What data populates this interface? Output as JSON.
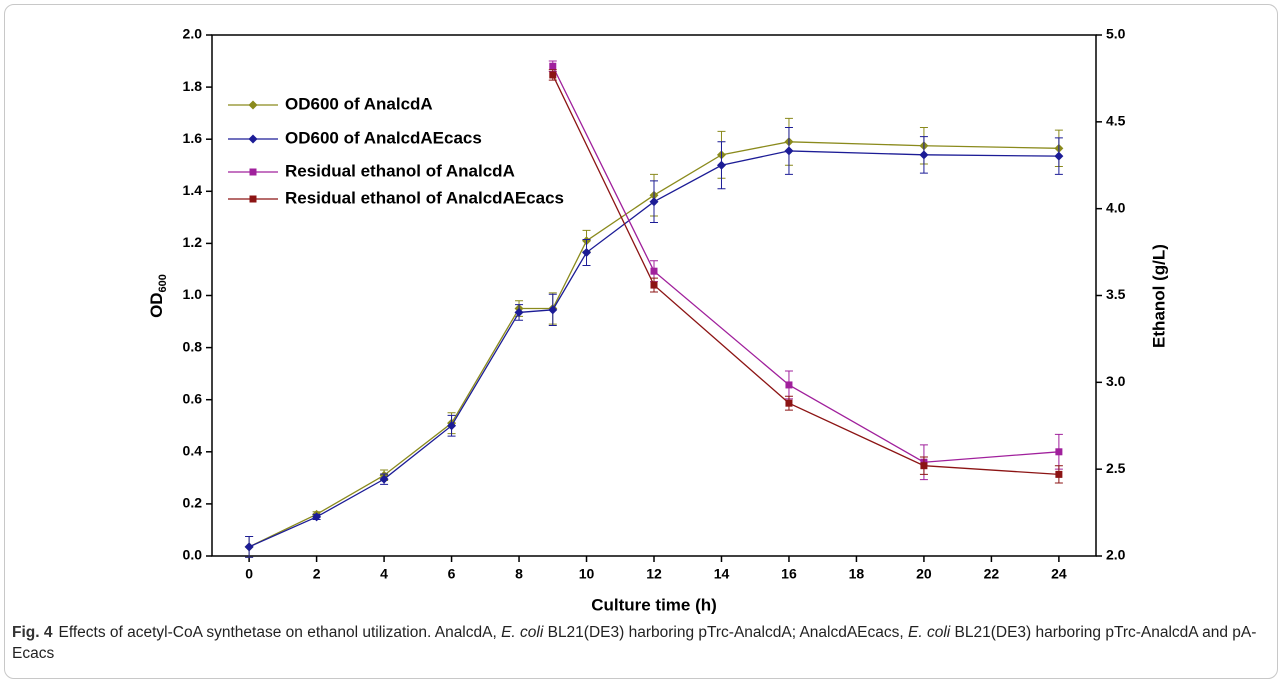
{
  "chart_data": {
    "type": "line",
    "xlabel": "Culture time (h)",
    "ylabel": "OD",
    "ylabel_subscript": "600",
    "y2label": "Ethanol (g/L)",
    "xlim": [
      -1.1,
      25.1
    ],
    "xticks": [
      0,
      2,
      4,
      6,
      8,
      10,
      12,
      14,
      16,
      18,
      20,
      22,
      24
    ],
    "ylim": [
      0,
      2
    ],
    "yticks": [
      {
        "value": 0,
        "label": "0.0"
      },
      0.2,
      0.4,
      0.6,
      0.8,
      {
        "value": 1,
        "label": "1.0"
      },
      1.2,
      1.4,
      1.6,
      1.8,
      {
        "value": 2,
        "label": "2.0"
      }
    ],
    "y2lim": [
      2,
      5
    ],
    "y2ticks": [
      {
        "value": 2,
        "label": "2.0"
      },
      2.5,
      {
        "value": 3,
        "label": "3.0"
      },
      3.5,
      {
        "value": 4,
        "label": "4.0"
      },
      4.5,
      {
        "value": 5,
        "label": "5.0"
      }
    ],
    "legend": "upper-left",
    "series": [
      {
        "name": "OD600 of AnalcdA",
        "color": "#8a8a1c",
        "marker": "diamond",
        "axis": "y",
        "x": [
          0,
          2,
          4,
          6,
          8,
          9,
          10,
          12,
          14,
          16,
          20,
          24
        ],
        "values": [
          0.035,
          0.16,
          0.31,
          0.51,
          0.95,
          0.95,
          1.21,
          1.385,
          1.54,
          1.59,
          1.575,
          1.565
        ],
        "errors": [
          0.04,
          0.01,
          0.02,
          0.04,
          0.03,
          0.06,
          0.04,
          0.08,
          0.09,
          0.09,
          0.07,
          0.07
        ]
      },
      {
        "name": "OD600 of AnalcdAEcacs",
        "color": "#1c1c96",
        "marker": "diamond",
        "axis": "y",
        "x": [
          0,
          2,
          4,
          6,
          8,
          9,
          10,
          12,
          14,
          16,
          20,
          24
        ],
        "values": [
          0.035,
          0.15,
          0.295,
          0.5,
          0.935,
          0.945,
          1.165,
          1.36,
          1.5,
          1.555,
          1.54,
          1.535
        ],
        "errors": [
          0.04,
          0.01,
          0.02,
          0.04,
          0.03,
          0.06,
          0.05,
          0.08,
          0.09,
          0.09,
          0.07,
          0.07
        ]
      },
      {
        "name": "Residual ethanol of AnalcdA",
        "color": "#a0209c",
        "marker": "square",
        "axis": "y2",
        "x": [
          9,
          12,
          16,
          20,
          24
        ],
        "values": [
          4.82,
          3.64,
          2.985,
          2.54,
          2.6
        ],
        "errors": [
          0.03,
          0.06,
          0.08,
          0.1,
          0.1
        ]
      },
      {
        "name": "Residual ethanol of AnalcdAEcacs",
        "color": "#8c1414",
        "marker": "square",
        "axis": "y2",
        "x": [
          9,
          12,
          16,
          20,
          24
        ],
        "values": [
          4.77,
          3.56,
          2.88,
          2.52,
          2.47
        ],
        "errors": [
          0.03,
          0.04,
          0.04,
          0.05,
          0.05
        ]
      }
    ]
  },
  "caption": {
    "label": "Fig. 4",
    "parts": [
      "Effects of acetyl-CoA synthetase on ethanol utilization. AnalcdA, ",
      "E. coli",
      " BL21(DE3) harboring pTrc-AnalcdA; AnalcdAEcacs, ",
      "E. coli",
      " BL21(DE3) harboring pTrc-AnalcdA and pA-Ecacs"
    ]
  }
}
